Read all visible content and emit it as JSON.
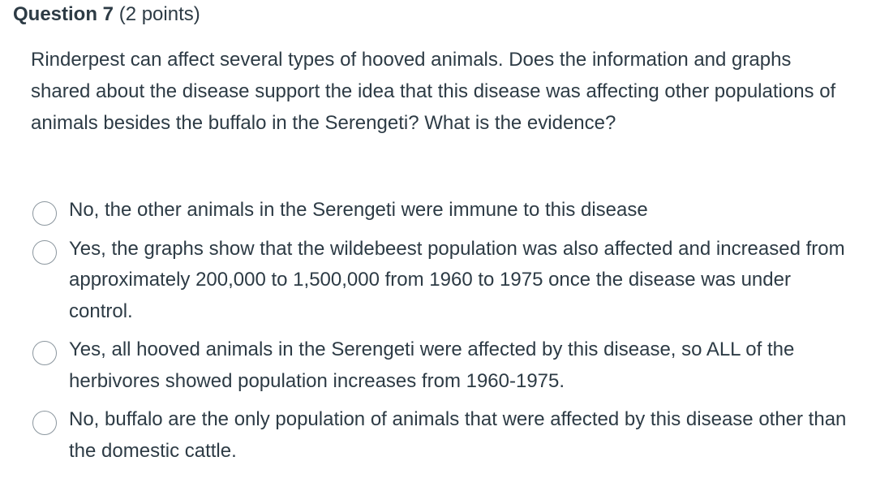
{
  "question": {
    "title": "Question 7",
    "points": "(2 points)",
    "text": "Rinderpest can affect several types of hooved animals.  Does the information and graphs shared about the disease  support the idea that this disease was affecting other populations of animals besides the buffalo in the Serengeti?  What is the evidence?"
  },
  "answers": [
    {
      "label": "No, the other animals in the Serengeti were immune to this disease",
      "selected": false
    },
    {
      "label": "Yes, the graphs show that the wildebeest population was also affected and increased from approximately 200,000 to 1,500,000 from 1960 to 1975 once the disease was under control.",
      "selected": false
    },
    {
      "label": "Yes, all hooved animals in the Serengeti were affected by this disease, so ALL of the herbivores showed population increases from 1960-1975.",
      "selected": false
    },
    {
      "label": "No, buffalo are the only population of animals that were affected by this disease other than the domestic cattle.",
      "selected": false
    }
  ]
}
